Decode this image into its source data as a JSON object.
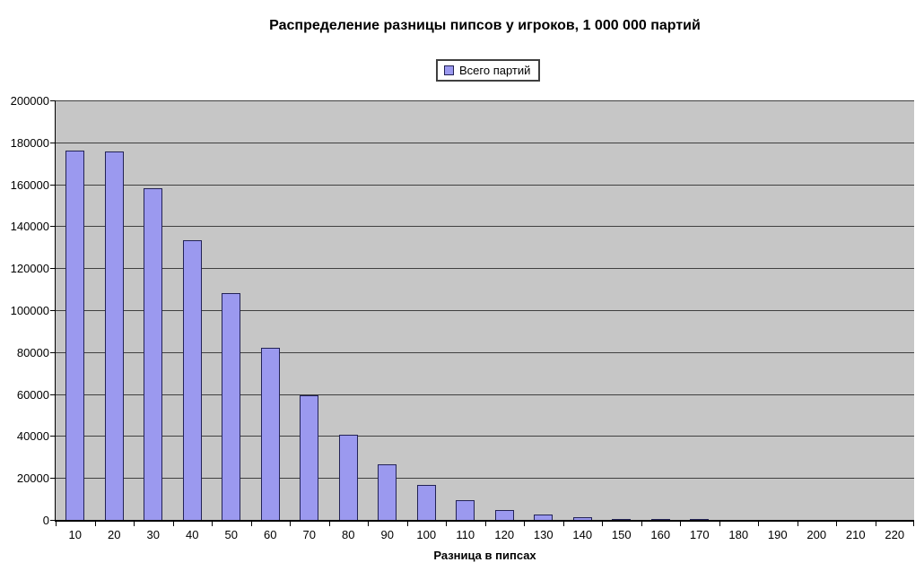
{
  "chart_data": {
    "type": "bar",
    "title": "Распределение разницы пипсов у игроков, 1 000 000 партий",
    "xlabel": "Разница в пипсах",
    "ylabel": "",
    "categories": [
      "10",
      "20",
      "30",
      "40",
      "50",
      "60",
      "70",
      "80",
      "90",
      "100",
      "110",
      "120",
      "130",
      "140",
      "150",
      "160",
      "170",
      "180",
      "190",
      "200",
      "210",
      "220"
    ],
    "series": [
      {
        "name": "Всего партий",
        "values": [
          176000,
          175500,
          158000,
          133500,
          108000,
          82000,
          59500,
          40500,
          26500,
          16500,
          9500,
          4800,
          2400,
          1100,
          500,
          300,
          200,
          0,
          0,
          0,
          0,
          0
        ]
      }
    ],
    "ylim": [
      0,
      200000
    ],
    "ytick_step": 20000,
    "y_tick_labels": [
      "0",
      "20000",
      "40000",
      "60000",
      "80000",
      "100000",
      "120000",
      "140000",
      "160000",
      "180000",
      "200000"
    ],
    "grid": true,
    "legend_position": "top-center",
    "colors": {
      "plot_background": "#C6C6C6",
      "bar_fill": "#9B99EF",
      "bar_border": "#222255",
      "gridline": "#3F3F3F",
      "axis": "#000000",
      "text": "#000000",
      "page_background": "#FFFFFF"
    }
  }
}
